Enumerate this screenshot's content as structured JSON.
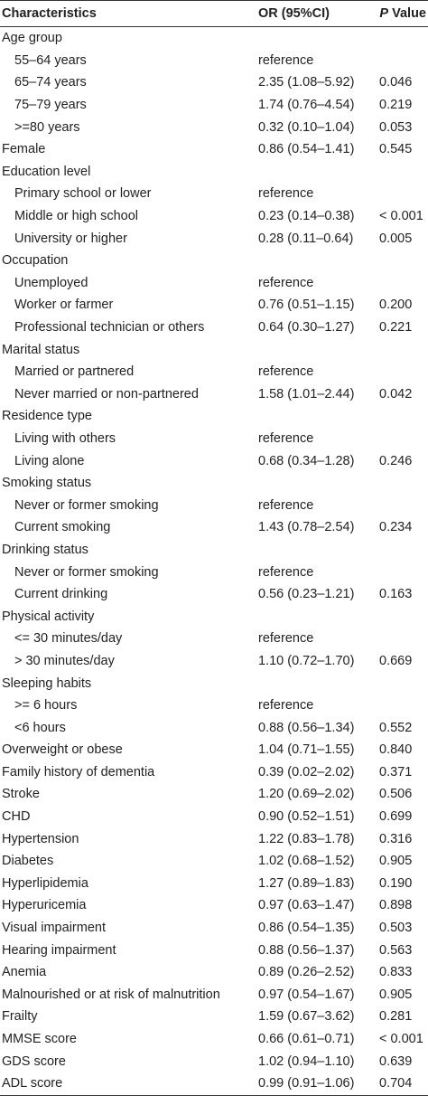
{
  "header": {
    "characteristics": "Characteristics",
    "or": "OR (95%CI)",
    "p_italic": "P",
    "p_rest": " Value"
  },
  "rows": [
    {
      "label": "Age group",
      "or": "",
      "p": "",
      "indent": false
    },
    {
      "label": "55–64 years",
      "or": "reference",
      "p": "",
      "indent": true
    },
    {
      "label": "65–74 years",
      "or": "2.35 (1.08–5.92)",
      "p": "0.046",
      "indent": true
    },
    {
      "label": "75–79 years",
      "or": "1.74 (0.76–4.54)",
      "p": "0.219",
      "indent": true
    },
    {
      "label": ">=80 years",
      "or": "0.32 (0.10–1.04)",
      "p": "0.053",
      "indent": true
    },
    {
      "label": "Female",
      "or": "0.86 (0.54–1.41)",
      "p": "0.545",
      "indent": false
    },
    {
      "label": "Education level",
      "or": "",
      "p": "",
      "indent": false
    },
    {
      "label": "Primary school or lower",
      "or": "reference",
      "p": "",
      "indent": true
    },
    {
      "label": "Middle or high school",
      "or": "0.23 (0.14–0.38)",
      "p": "< 0.001",
      "indent": true
    },
    {
      "label": "University or higher",
      "or": "0.28 (0.11–0.64)",
      "p": "0.005",
      "indent": true
    },
    {
      "label": "Occupation",
      "or": "",
      "p": "",
      "indent": false
    },
    {
      "label": "Unemployed",
      "or": "reference",
      "p": "",
      "indent": true
    },
    {
      "label": "Worker or farmer",
      "or": "0.76 (0.51–1.15)",
      "p": "0.200",
      "indent": true
    },
    {
      "label": "Professional technician or others",
      "or": "0.64 (0.30–1.27)",
      "p": "0.221",
      "indent": true
    },
    {
      "label": "Marital status",
      "or": "",
      "p": "",
      "indent": false
    },
    {
      "label": "Married or partnered",
      "or": "reference",
      "p": "",
      "indent": true
    },
    {
      "label": "Never married or non-partnered",
      "or": "1.58 (1.01–2.44)",
      "p": "0.042",
      "indent": true
    },
    {
      "label": "Residence type",
      "or": "",
      "p": "",
      "indent": false
    },
    {
      "label": "Living with others",
      "or": "reference",
      "p": "",
      "indent": true
    },
    {
      "label": "Living alone",
      "or": "0.68 (0.34–1.28)",
      "p": "0.246",
      "indent": true
    },
    {
      "label": "Smoking status",
      "or": "",
      "p": "",
      "indent": false
    },
    {
      "label": "Never or former smoking",
      "or": "reference",
      "p": "",
      "indent": true
    },
    {
      "label": "Current smoking",
      "or": "1.43 (0.78–2.54)",
      "p": "0.234",
      "indent": true
    },
    {
      "label": "Drinking status",
      "or": "",
      "p": "",
      "indent": false
    },
    {
      "label": "Never or former smoking",
      "or": "reference",
      "p": "",
      "indent": true
    },
    {
      "label": "Current drinking",
      "or": "0.56 (0.23–1.21)",
      "p": "0.163",
      "indent": true
    },
    {
      "label": "Physical activity",
      "or": "",
      "p": "",
      "indent": false
    },
    {
      "label": "<= 30 minutes/day",
      "or": "reference",
      "p": "",
      "indent": true
    },
    {
      "label": "> 30 minutes/day",
      "or": "1.10 (0.72–1.70)",
      "p": "0.669",
      "indent": true
    },
    {
      "label": "Sleeping habits",
      "or": "",
      "p": "",
      "indent": false
    },
    {
      "label": ">= 6 hours",
      "or": "reference",
      "p": "",
      "indent": true
    },
    {
      "label": "<6 hours",
      "or": "0.88 (0.56–1.34)",
      "p": "0.552",
      "indent": true
    },
    {
      "label": "Overweight or obese",
      "or": "1.04 (0.71–1.55)",
      "p": "0.840",
      "indent": false
    },
    {
      "label": "Family history of dementia",
      "or": "0.39 (0.02–2.02)",
      "p": "0.371",
      "indent": false
    },
    {
      "label": "Stroke",
      "or": "1.20 (0.69–2.02)",
      "p": "0.506",
      "indent": false
    },
    {
      "label": "CHD",
      "or": "0.90 (0.52–1.51)",
      "p": "0.699",
      "indent": false
    },
    {
      "label": "Hypertension",
      "or": "1.22 (0.83–1.78)",
      "p": "0.316",
      "indent": false
    },
    {
      "label": "Diabetes",
      "or": "1.02 (0.68–1.52)",
      "p": "0.905",
      "indent": false
    },
    {
      "label": "Hyperlipidemia",
      "or": "1.27 (0.89–1.83)",
      "p": "0.190",
      "indent": false
    },
    {
      "label": "Hyperuricemia",
      "or": "0.97 (0.63–1.47)",
      "p": "0.898",
      "indent": false
    },
    {
      "label": "Visual impairment",
      "or": "0.86 (0.54–1.35)",
      "p": "0.503",
      "indent": false
    },
    {
      "label": "Hearing impairment",
      "or": "0.88 (0.56–1.37)",
      "p": "0.563",
      "indent": false
    },
    {
      "label": "Anemia",
      "or": "0.89 (0.26–2.52)",
      "p": "0.833",
      "indent": false
    },
    {
      "label": "Malnourished or at risk of malnutrition",
      "or": "0.97 (0.54–1.67)",
      "p": "0.905",
      "indent": false
    },
    {
      "label": "Frailty",
      "or": "1.59 (0.67–3.62)",
      "p": "0.281",
      "indent": false
    },
    {
      "label": "MMSE score",
      "or": "0.66 (0.61–0.71)",
      "p": "< 0.001",
      "indent": false
    },
    {
      "label": "GDS score",
      "or": "1.02 (0.94–1.10)",
      "p": "0.639",
      "indent": false
    },
    {
      "label": "ADL score",
      "or": "0.99 (0.91–1.06)",
      "p": "0.704",
      "indent": false
    }
  ]
}
